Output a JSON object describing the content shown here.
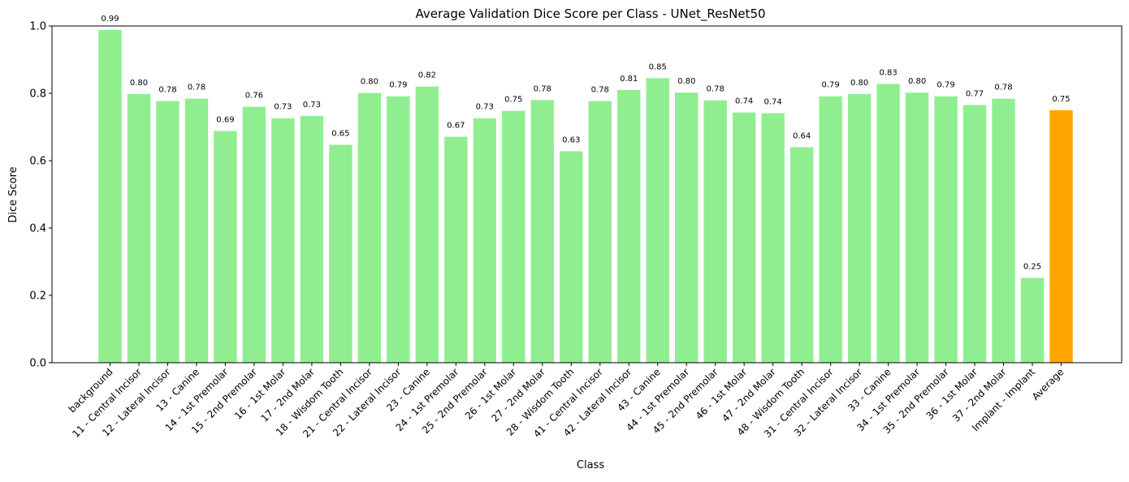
{
  "chart_data": {
    "type": "bar",
    "title": "Average Validation Dice Score per Class - UNet_ResNet50",
    "xlabel": "Class",
    "ylabel": "Dice Score",
    "ylim": [
      0,
      1.0
    ],
    "yticks": [
      "0.0",
      "0.2",
      "0.4",
      "0.6",
      "0.8",
      "1.0"
    ],
    "grid": false,
    "categories": [
      "background",
      "11 - Central Incisor",
      "12 - Lateral Incisor",
      "13 - Canine",
      "14 - 1st Premolar",
      "15 - 2nd Premolar",
      "16 - 1st Molar",
      "17 - 2nd Molar",
      "18 - Wisdom Tooth",
      "21 - Central Incisor",
      "22 - Lateral Incisor",
      "23 - Canine",
      "24 - 1st Premolar",
      "25 - 2nd Premolar",
      "26 - 1st Molar",
      "27 - 2nd Molar",
      "28 - Wisdom Tooth",
      "41 - Central Incisor",
      "42 - Lateral Incisor",
      "43 - Canine",
      "44 - 1st Premolar",
      "45 - 2nd Premolar",
      "46 - 1st Molar",
      "47 - 2nd Molar",
      "48 - Wisdom Tooth",
      "31 - Central Incisor",
      "32 - Lateral Incisor",
      "33 - Canine",
      "34 - 1st Premolar",
      "35 - 2nd Premolar",
      "36 - 1st Molar",
      "37 - 2nd Molar",
      "Implant - Implant",
      "Average"
    ],
    "values": [
      0.988,
      0.798,
      0.777,
      0.784,
      0.688,
      0.76,
      0.726,
      0.733,
      0.647,
      0.801,
      0.791,
      0.82,
      0.671,
      0.726,
      0.748,
      0.78,
      0.628,
      0.777,
      0.81,
      0.845,
      0.802,
      0.779,
      0.743,
      0.741,
      0.64,
      0.791,
      0.798,
      0.828,
      0.802,
      0.791,
      0.765,
      0.784,
      0.252,
      0.75
    ],
    "labels": [
      "0.99",
      "0.80",
      "0.78",
      "0.78",
      "0.69",
      "0.76",
      "0.73",
      "0.73",
      "0.65",
      "0.80",
      "0.79",
      "0.82",
      "0.67",
      "0.73",
      "0.75",
      "0.78",
      "0.63",
      "0.78",
      "0.81",
      "0.85",
      "0.80",
      "0.78",
      "0.74",
      "0.74",
      "0.64",
      "0.79",
      "0.80",
      "0.83",
      "0.80",
      "0.79",
      "0.77",
      "0.78",
      "0.25",
      "0.75"
    ],
    "colors": {
      "default": "#90ee90",
      "highlight": "#ffa500",
      "highlight_category": "Average",
      "axis": "#000000"
    }
  }
}
